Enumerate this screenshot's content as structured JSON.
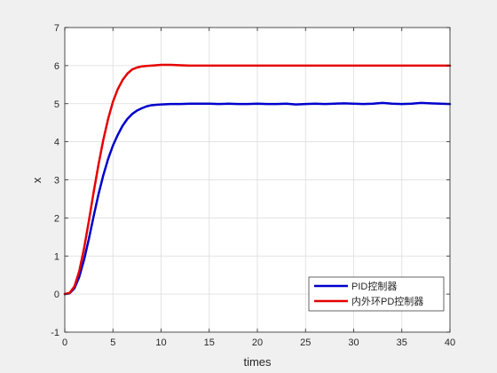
{
  "chart_data": {
    "type": "line",
    "xlabel": "times",
    "ylabel": "x",
    "xlim": [
      0,
      40
    ],
    "ylim": [
      -1,
      7
    ],
    "xticks": [
      0,
      5,
      10,
      15,
      20,
      25,
      30,
      35,
      40
    ],
    "yticks": [
      -1,
      0,
      1,
      2,
      3,
      4,
      5,
      6,
      7
    ],
    "grid": true,
    "legend_position": "bottom-right",
    "background_color": "#f0f0f0",
    "axes_color": "#ffffff",
    "series": [
      {
        "name": "PID控制器",
        "color": "#0000cc",
        "x": [
          0,
          0.5,
          1,
          1.5,
          2,
          2.5,
          3,
          3.5,
          4,
          4.5,
          5,
          5.5,
          6,
          6.5,
          7,
          7.5,
          8,
          8.5,
          9,
          9.5,
          10,
          11,
          12,
          13,
          14,
          15,
          16,
          17,
          18,
          19,
          20,
          21,
          22,
          23,
          24,
          25,
          26,
          27,
          28,
          29,
          30,
          31,
          32,
          33,
          34,
          35,
          36,
          37,
          38,
          39,
          40
        ],
        "y": [
          0,
          0.02,
          0.15,
          0.45,
          0.9,
          1.45,
          2.05,
          2.62,
          3.12,
          3.55,
          3.9,
          4.18,
          4.42,
          4.6,
          4.73,
          4.82,
          4.88,
          4.93,
          4.96,
          4.97,
          4.98,
          4.99,
          4.99,
          5.0,
          5.0,
          5.0,
          4.99,
          5.0,
          4.99,
          4.99,
          5.0,
          4.99,
          4.99,
          5.0,
          4.98,
          4.99,
          5.0,
          4.99,
          5.0,
          5.01,
          5.0,
          4.99,
          5.0,
          5.02,
          5.0,
          4.99,
          5.0,
          5.02,
          5.01,
          5.0,
          4.99
        ]
      },
      {
        "name": "内外环PD控制器",
        "color": "#e60000",
        "x": [
          0,
          0.5,
          1,
          1.5,
          2,
          2.5,
          3,
          3.5,
          4,
          4.5,
          5,
          5.5,
          6,
          6.5,
          7,
          7.5,
          8,
          8.5,
          9,
          9.5,
          10,
          11,
          12,
          13,
          14,
          15,
          16,
          18,
          20,
          22,
          24,
          26,
          28,
          30,
          32,
          34,
          36,
          38,
          40
        ],
        "y": [
          0,
          0.03,
          0.2,
          0.6,
          1.2,
          1.92,
          2.68,
          3.4,
          4.05,
          4.6,
          5.05,
          5.38,
          5.62,
          5.79,
          5.9,
          5.95,
          5.98,
          5.99,
          6.0,
          6.01,
          6.02,
          6.02,
          6.01,
          6.0,
          6.0,
          6.0,
          6.0,
          6.0,
          6.0,
          6.0,
          6.0,
          6.0,
          6.0,
          6.0,
          6.0,
          6.0,
          6.0,
          6.0,
          6.0
        ]
      }
    ]
  }
}
